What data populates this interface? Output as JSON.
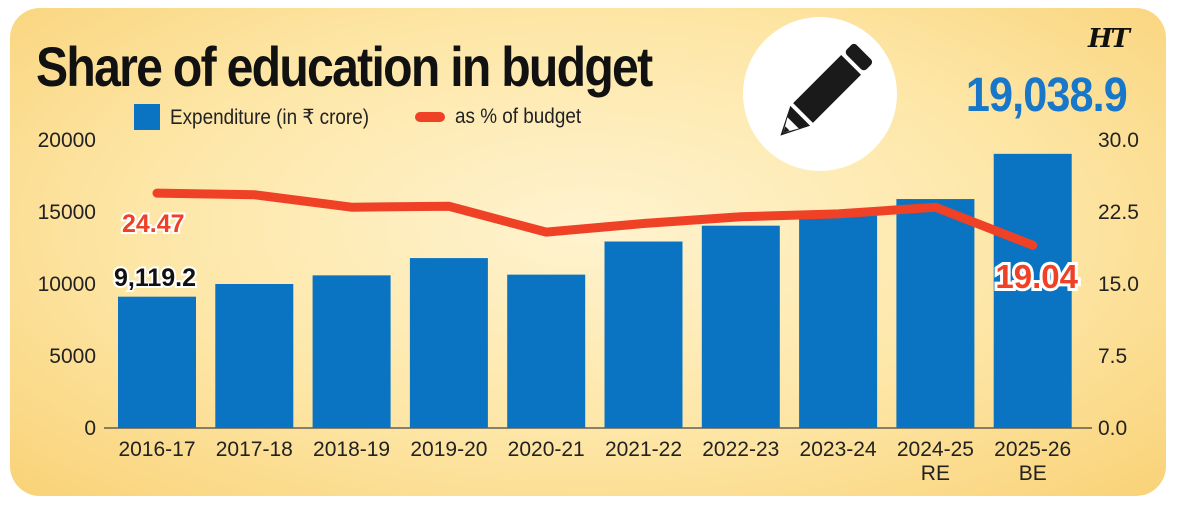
{
  "title": "Share of education in budget",
  "logo": "HT",
  "highlight_value": "19,038.9",
  "chart_data": {
    "type": "bar",
    "title": "Share of education in budget",
    "categories": [
      "2016-17",
      "2017-18",
      "2018-19",
      "2019-20",
      "2020-21",
      "2021-22",
      "2022-23",
      "2023-24",
      "2024-25",
      "2025-26"
    ],
    "category_sublabels": [
      "",
      "",
      "",
      "",
      "",
      "",
      "",
      "",
      "RE",
      "BE"
    ],
    "series": [
      {
        "name": "Expenditure (in ₹ crore)",
        "axis": "left",
        "kind": "bar",
        "color": "#0a73c2",
        "values": [
          9119.2,
          10000,
          10600,
          11800,
          10650,
          12950,
          14050,
          14900,
          15900,
          19038.9
        ]
      },
      {
        "name": "as % of budget",
        "axis": "right",
        "kind": "line",
        "color": "#ef4125",
        "values": [
          24.47,
          24.3,
          23.0,
          23.1,
          20.4,
          21.3,
          22.0,
          22.3,
          23.0,
          19.04
        ]
      }
    ],
    "left_axis": {
      "ticks": [
        "0",
        "5000",
        "10000",
        "15000",
        "20000"
      ],
      "range": [
        0,
        20000
      ]
    },
    "right_axis": {
      "ticks": [
        "0.0",
        "7.5",
        "15.0",
        "22.5",
        "30.0"
      ],
      "range": [
        0,
        30
      ]
    },
    "annotations": {
      "first_bar_label": "9,119.2",
      "first_line_label": "24.47",
      "last_line_label": "19.04"
    }
  }
}
